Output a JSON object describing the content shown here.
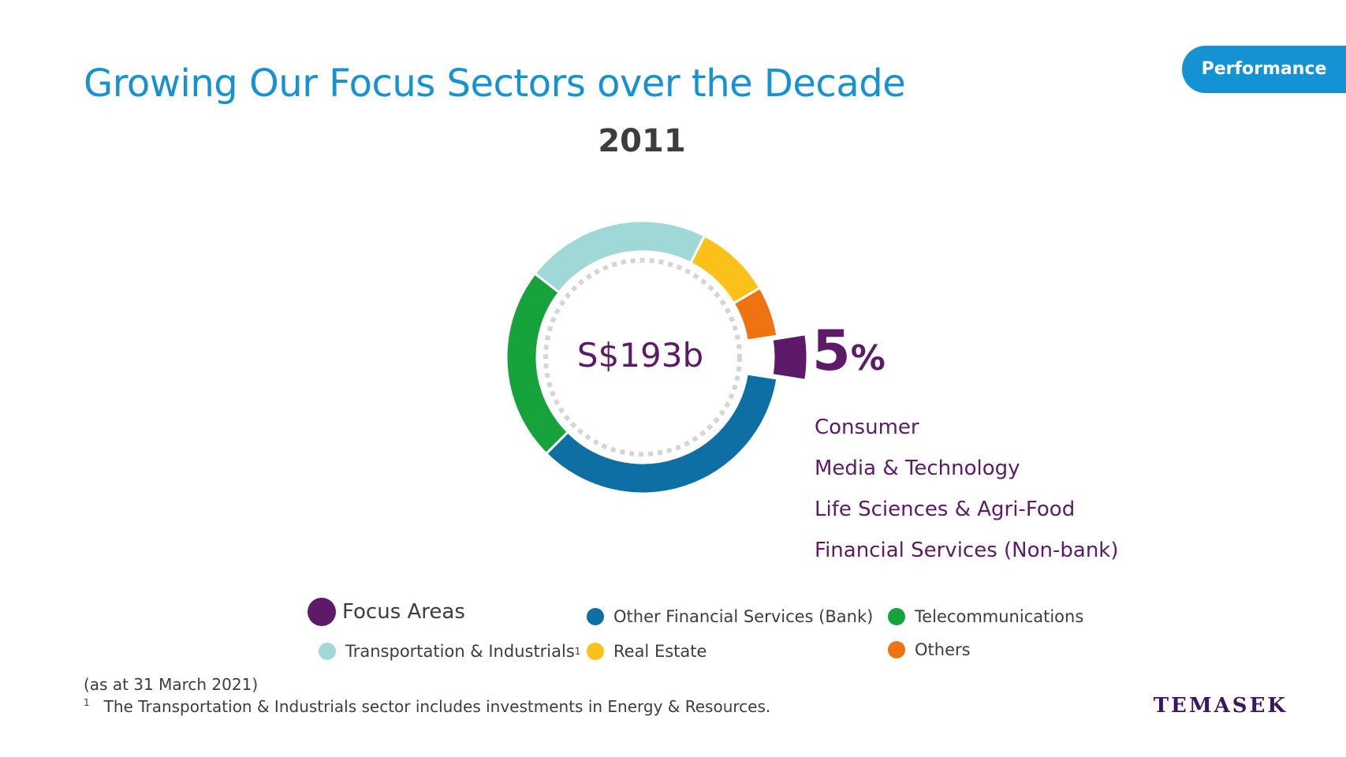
{
  "title": "Growing Our Focus Sectors over the Decade",
  "badge_label": "Performance",
  "chart_data": {
    "type": "pie",
    "title": "2011",
    "center_label": "S$193b",
    "unit": "%",
    "categories": [
      "Focus Areas",
      "Other Financial Services (Bank)",
      "Telecommunications",
      "Transportation & Industrials",
      "Real Estate",
      "Others"
    ],
    "values": [
      5,
      35,
      23,
      22,
      9,
      6
    ],
    "colors": [
      "#5c1a68",
      "#0d6fa3",
      "#17a33b",
      "#9fd8d6",
      "#fbc11a",
      "#ef7310"
    ],
    "highlight": {
      "category": "Focus Areas",
      "value_label": "5",
      "value_symbol": "%"
    },
    "highlight_sectors": [
      "Consumer",
      "Media & Technology",
      "Life Sciences & Agri-Food",
      "Financial Services (Non-bank)"
    ],
    "legend": [
      {
        "label": "Focus Areas",
        "color": "#5c1a68"
      },
      {
        "label": "Other Financial Services (Bank)",
        "color": "#0d6fa3"
      },
      {
        "label": "Telecommunications",
        "color": "#17a33b"
      },
      {
        "label": "Transportation & Industrials",
        "footnote": "1",
        "color": "#9fd8d6"
      },
      {
        "label": "Real Estate",
        "color": "#fbc11a"
      },
      {
        "label": "Others",
        "color": "#ef7310"
      }
    ],
    "legend_position": "bottom"
  },
  "note": "(as at 31 March 2021)",
  "footnote": {
    "marker": "1",
    "text": "The Transportation & Industrials sector includes investments in Energy & Resources."
  },
  "logo_text": "TEMASEK"
}
